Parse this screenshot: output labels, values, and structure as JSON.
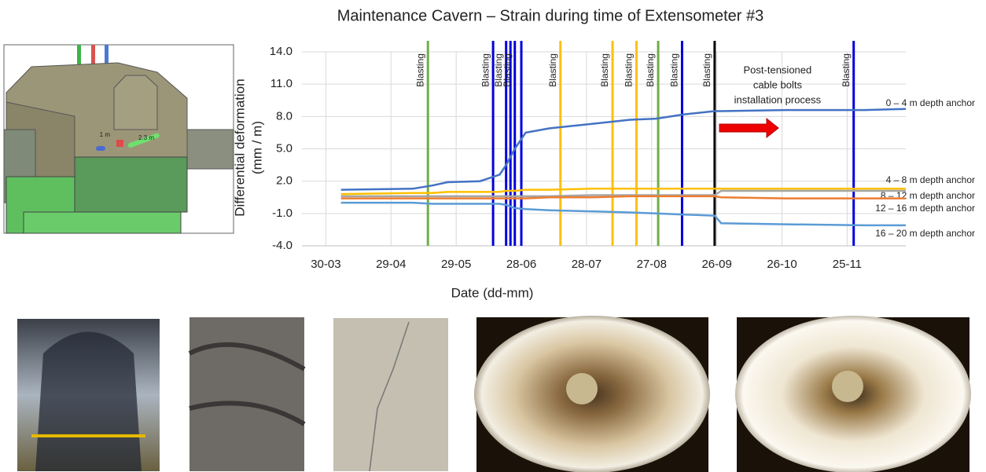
{
  "chart_data": {
    "type": "line",
    "title": "Maintenance Cavern – Strain during time of Extensometer #3",
    "x_label": "Date (dd-mm)",
    "y_label_lines": [
      "Differential deformation",
      "(mm / m)"
    ],
    "xlim": [
      -11,
      267
    ],
    "xticks": [
      {
        "value": 0,
        "label": "30-03"
      },
      {
        "value": 30,
        "label": "29-04"
      },
      {
        "value": 60,
        "label": "29-05"
      },
      {
        "value": 90,
        "label": "28-06"
      },
      {
        "value": 120,
        "label": "28-07"
      },
      {
        "value": 150,
        "label": "27-08"
      },
      {
        "value": 180,
        "label": "26-09"
      },
      {
        "value": 210,
        "label": "26-10"
      },
      {
        "value": 240,
        "label": "25-11"
      }
    ],
    "ylim": [
      -4,
      14
    ],
    "yticks": [
      {
        "value": -4,
        "label": "-4.0"
      },
      {
        "value": -1,
        "label": "-1.0"
      },
      {
        "value": 2,
        "label": "2.0"
      },
      {
        "value": 5,
        "label": "5.0"
      },
      {
        "value": 8,
        "label": "8.0"
      },
      {
        "value": 11,
        "label": "11.0"
      },
      {
        "value": 14,
        "label": "14.0"
      }
    ],
    "grid": true,
    "x": [
      7,
      40,
      49,
      56,
      71,
      80,
      83,
      87,
      92,
      103,
      122,
      140,
      152,
      165,
      179,
      182,
      212,
      248,
      267
    ],
    "series": [
      {
        "name": "0 – 4 m depth anchor",
        "color": "#4472c4",
        "values": [
          1.2,
          1.3,
          1.6,
          1.9,
          2.0,
          2.6,
          3.5,
          5.0,
          6.5,
          6.9,
          7.3,
          7.7,
          7.8,
          8.2,
          8.5,
          8.5,
          8.6,
          8.6,
          8.7
        ]
      },
      {
        "name": "4 – 8 m depth anchor",
        "color": "#ffc000",
        "values": [
          0.8,
          0.9,
          0.9,
          1.0,
          1.0,
          1.0,
          1.1,
          1.1,
          1.2,
          1.2,
          1.3,
          1.3,
          1.3,
          1.3,
          1.3,
          1.3,
          1.3,
          1.3,
          1.3
        ]
      },
      {
        "name": "8 – 12 m depth anchor",
        "color": "#a5a5a5",
        "values": [
          0.6,
          0.6,
          0.6,
          0.6,
          0.6,
          0.6,
          0.6,
          0.6,
          0.6,
          0.6,
          0.7,
          0.7,
          0.7,
          0.7,
          0.7,
          1.1,
          1.1,
          1.1,
          1.1
        ]
      },
      {
        "name": "12 – 16 m depth anchor",
        "color": "#ed7d31",
        "values": [
          0.4,
          0.4,
          0.4,
          0.4,
          0.4,
          0.4,
          0.4,
          0.4,
          0.4,
          0.5,
          0.5,
          0.6,
          0.6,
          0.6,
          0.6,
          0.5,
          0.4,
          0.4,
          0.4
        ]
      },
      {
        "name": "16 – 20 m depth anchor",
        "color": "#5b9bd5",
        "values": [
          0.0,
          0.0,
          -0.1,
          -0.1,
          -0.1,
          -0.1,
          -0.2,
          -0.5,
          -0.6,
          -0.7,
          -0.8,
          -0.9,
          -1.0,
          -1.1,
          -1.2,
          -1.9,
          -2.0,
          -2.1,
          -2.1
        ]
      }
    ],
    "events": [
      {
        "x": 47,
        "color": "#70ad47",
        "label": "Blasting"
      },
      {
        "x": 77,
        "color": "#0000dd",
        "label": "Blasting"
      },
      {
        "x": 83,
        "color": "#0000dd",
        "label": "Blasting"
      },
      {
        "x": 85,
        "color": "#0000dd",
        "label": null
      },
      {
        "x": 87,
        "color": "#0000dd",
        "label": "Blasting"
      },
      {
        "x": 90,
        "color": "#0000dd",
        "label": null
      },
      {
        "x": 108,
        "color": "#ffc000",
        "label": "Blasting"
      },
      {
        "x": 132,
        "color": "#ffc000",
        "label": "Blasting"
      },
      {
        "x": 143,
        "color": "#ffc000",
        "label": "Blasting"
      },
      {
        "x": 153,
        "color": "#70ad47",
        "label": "Blasting"
      },
      {
        "x": 164,
        "color": "#0000dd",
        "label": "Blasting"
      },
      {
        "x": 179,
        "color": "#000000",
        "label": "Blasting"
      },
      {
        "x": 243,
        "color": "#0000dd",
        "label": "Blasting"
      }
    ],
    "annotation_lines": [
      "Post-tensioned",
      "cable bolts",
      "installation process"
    ]
  },
  "diagram": {
    "labels": [
      "1 m",
      "2.3 m"
    ]
  }
}
